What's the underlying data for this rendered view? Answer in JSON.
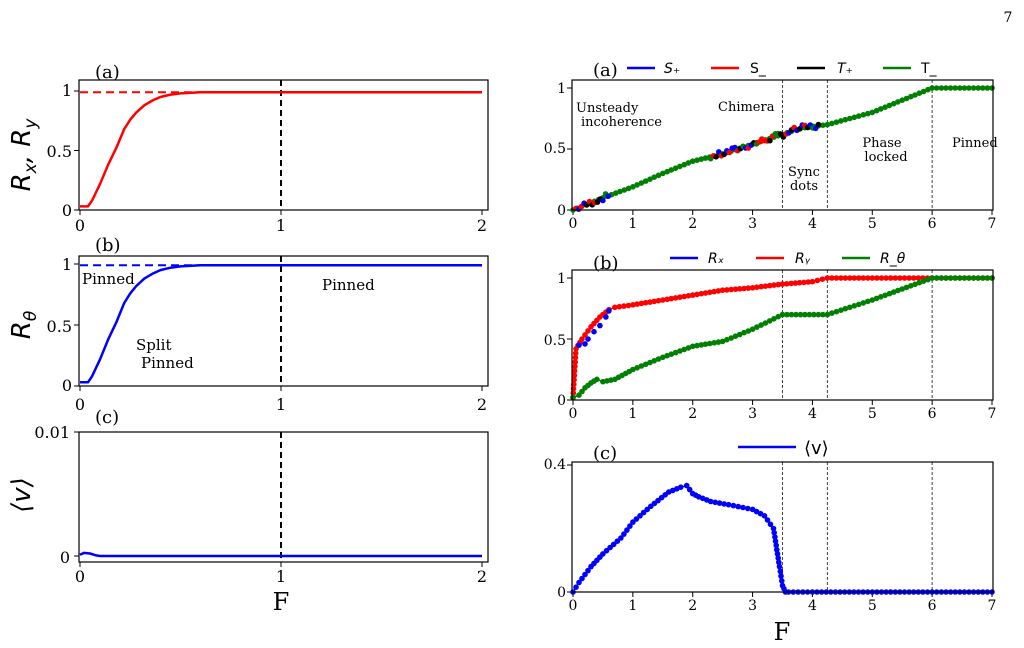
{
  "page_number": "7",
  "chart_data": [
    {
      "id": "L1",
      "type": "line",
      "panel_label": "(a)",
      "ylabel": "R_x, R_y",
      "xlim": [
        0,
        2
      ],
      "ylim": [
        0,
        1
      ],
      "xticks": [
        "0",
        "1",
        "2"
      ],
      "yticks": [
        "0",
        "0.5",
        "1"
      ],
      "vlines": [
        1
      ],
      "hline": {
        "y": 0.99,
        "x_to": 0.6,
        "color": "#ff0000"
      },
      "series": [
        {
          "color": "#ff0000",
          "x": [
            0,
            0.04,
            0.06,
            0.1,
            0.14,
            0.18,
            0.22,
            0.25,
            0.28,
            0.32,
            0.36,
            0.4,
            0.45,
            0.5,
            0.6,
            0.7,
            0.8,
            1.0,
            1.5,
            2.0
          ],
          "y": [
            0.03,
            0.03,
            0.08,
            0.22,
            0.38,
            0.52,
            0.68,
            0.76,
            0.82,
            0.88,
            0.92,
            0.95,
            0.97,
            0.98,
            0.99,
            0.99,
            0.99,
            0.99,
            0.99,
            0.99
          ]
        }
      ]
    },
    {
      "id": "L2",
      "type": "line",
      "panel_label": "(b)",
      "ylabel": "R_θ",
      "xlim": [
        0,
        2
      ],
      "ylim": [
        0,
        1
      ],
      "xticks": [
        "0",
        "1",
        "2"
      ],
      "yticks": [
        "0",
        "0.5",
        "1"
      ],
      "vlines": [
        1
      ],
      "hline": {
        "y": 0.99,
        "x_to": 0.6,
        "color": "#0000ff"
      },
      "annotations": [
        "Pinned",
        "Split",
        "Pinned",
        "Pinned"
      ],
      "series": [
        {
          "color": "#0000ff",
          "x": [
            0,
            0.04,
            0.06,
            0.1,
            0.14,
            0.18,
            0.22,
            0.25,
            0.28,
            0.32,
            0.36,
            0.4,
            0.45,
            0.5,
            0.6,
            0.7,
            0.8,
            1.0,
            1.5,
            2.0
          ],
          "y": [
            0.03,
            0.03,
            0.08,
            0.22,
            0.38,
            0.52,
            0.68,
            0.76,
            0.82,
            0.88,
            0.92,
            0.95,
            0.97,
            0.98,
            0.99,
            0.99,
            0.99,
            0.99,
            0.99,
            0.99
          ]
        }
      ]
    },
    {
      "id": "L3",
      "type": "line",
      "panel_label": "(c)",
      "ylabel": "⟨v⟩",
      "xlabel": "F",
      "xlim": [
        0,
        2
      ],
      "ylim": [
        0,
        0.01
      ],
      "xticks": [
        "0",
        "1",
        "2"
      ],
      "yticks": [
        "0",
        "0.01"
      ],
      "vlines": [
        1
      ],
      "series": [
        {
          "color": "#0000ff",
          "x": [
            0,
            0.02,
            0.05,
            0.08,
            0.1,
            2.0
          ],
          "y": [
            0.0001,
            0.00025,
            0.0002,
            5e-05,
            0.0,
            0.0
          ]
        }
      ]
    },
    {
      "id": "R1",
      "type": "scatter",
      "panel_label": "(a)",
      "xlim": [
        0,
        7
      ],
      "ylim": [
        0,
        1
      ],
      "xticks": [
        "0",
        "1",
        "2",
        "3",
        "4",
        "5",
        "6",
        "7"
      ],
      "yticks": [
        "0",
        "0.5",
        "1"
      ],
      "vlines": [
        3.5,
        4.25,
        6
      ],
      "legend": [
        "S₊",
        "S_",
        "T₊",
        "T_"
      ],
      "legend_colors": [
        "#0000ff",
        "#ff0000",
        "#000000",
        "#008000"
      ],
      "annotations": [
        "Unsteady",
        "incoherence",
        "Chimera",
        "Sync",
        "dots",
        "Phase",
        "locked",
        "Pinned"
      ],
      "series": [
        {
          "color": "#008000",
          "x": [
            0,
            0.5,
            1,
            1.5,
            2,
            2.5,
            3,
            3.5,
            3.8,
            4.25,
            5,
            6,
            7
          ],
          "y": [
            0.0,
            0.1,
            0.19,
            0.3,
            0.4,
            0.46,
            0.54,
            0.62,
            0.67,
            0.7,
            0.8,
            1.0,
            1.0
          ]
        }
      ]
    },
    {
      "id": "R2",
      "type": "scatter",
      "panel_label": "(b)",
      "xlim": [
        0,
        7
      ],
      "ylim": [
        0,
        1
      ],
      "xticks": [
        "0",
        "1",
        "2",
        "3",
        "4",
        "5",
        "6",
        "7"
      ],
      "yticks": [
        "0",
        "0.5",
        "1"
      ],
      "vlines": [
        3.5,
        4.25,
        6
      ],
      "legend": [
        "Rₓ",
        "Rᵧ",
        "R_θ"
      ],
      "legend_colors": [
        "#0000ff",
        "#ff0000",
        "#008000"
      ],
      "series": [
        {
          "color": "#ff0000",
          "x": [
            0,
            0.05,
            0.15,
            0.3,
            0.45,
            0.6,
            0.7,
            1,
            1.5,
            2,
            2.5,
            3,
            3.5,
            4,
            4.25,
            5,
            6,
            7
          ],
          "y": [
            0.02,
            0.42,
            0.5,
            0.6,
            0.68,
            0.74,
            0.76,
            0.78,
            0.82,
            0.86,
            0.9,
            0.92,
            0.95,
            0.97,
            1.0,
            1.0,
            1.0,
            1.0
          ]
        },
        {
          "color": "#008000",
          "x": [
            0,
            0.1,
            0.2,
            0.3,
            0.4,
            0.5,
            0.7,
            1,
            1.5,
            2,
            2.5,
            3,
            3.5,
            4.25,
            5,
            6,
            7
          ],
          "y": [
            0.02,
            0.04,
            0.1,
            0.14,
            0.17,
            0.15,
            0.17,
            0.25,
            0.35,
            0.44,
            0.48,
            0.58,
            0.7,
            0.7,
            0.82,
            1.0,
            1.0
          ]
        }
      ]
    },
    {
      "id": "R3",
      "type": "scatter",
      "panel_label": "(c)",
      "xlabel": "F",
      "xlim": [
        0,
        7
      ],
      "ylim": [
        0,
        0.4
      ],
      "xticks": [
        "0",
        "1",
        "2",
        "3",
        "4",
        "5",
        "6",
        "7"
      ],
      "yticks": [
        "0",
        "0.4"
      ],
      "vlines": [
        3.5,
        4.25,
        6
      ],
      "legend": [
        "⟨v⟩"
      ],
      "legend_colors": [
        "#0000ff"
      ],
      "series": [
        {
          "color": "#0000ff",
          "x": [
            0,
            0.1,
            0.3,
            0.5,
            0.8,
            1,
            1.3,
            1.6,
            1.8,
            1.9,
            2,
            2.1,
            2.3,
            2.6,
            3,
            3.2,
            3.35,
            3.45,
            3.5,
            3.55,
            3.6,
            4,
            5,
            6,
            7
          ],
          "y": [
            0.0,
            0.03,
            0.08,
            0.12,
            0.17,
            0.22,
            0.27,
            0.315,
            0.33,
            0.335,
            0.31,
            0.3,
            0.285,
            0.275,
            0.26,
            0.24,
            0.2,
            0.08,
            0.02,
            0.0,
            0.0,
            0.0,
            0.0,
            0.0,
            0.0
          ]
        }
      ]
    }
  ]
}
